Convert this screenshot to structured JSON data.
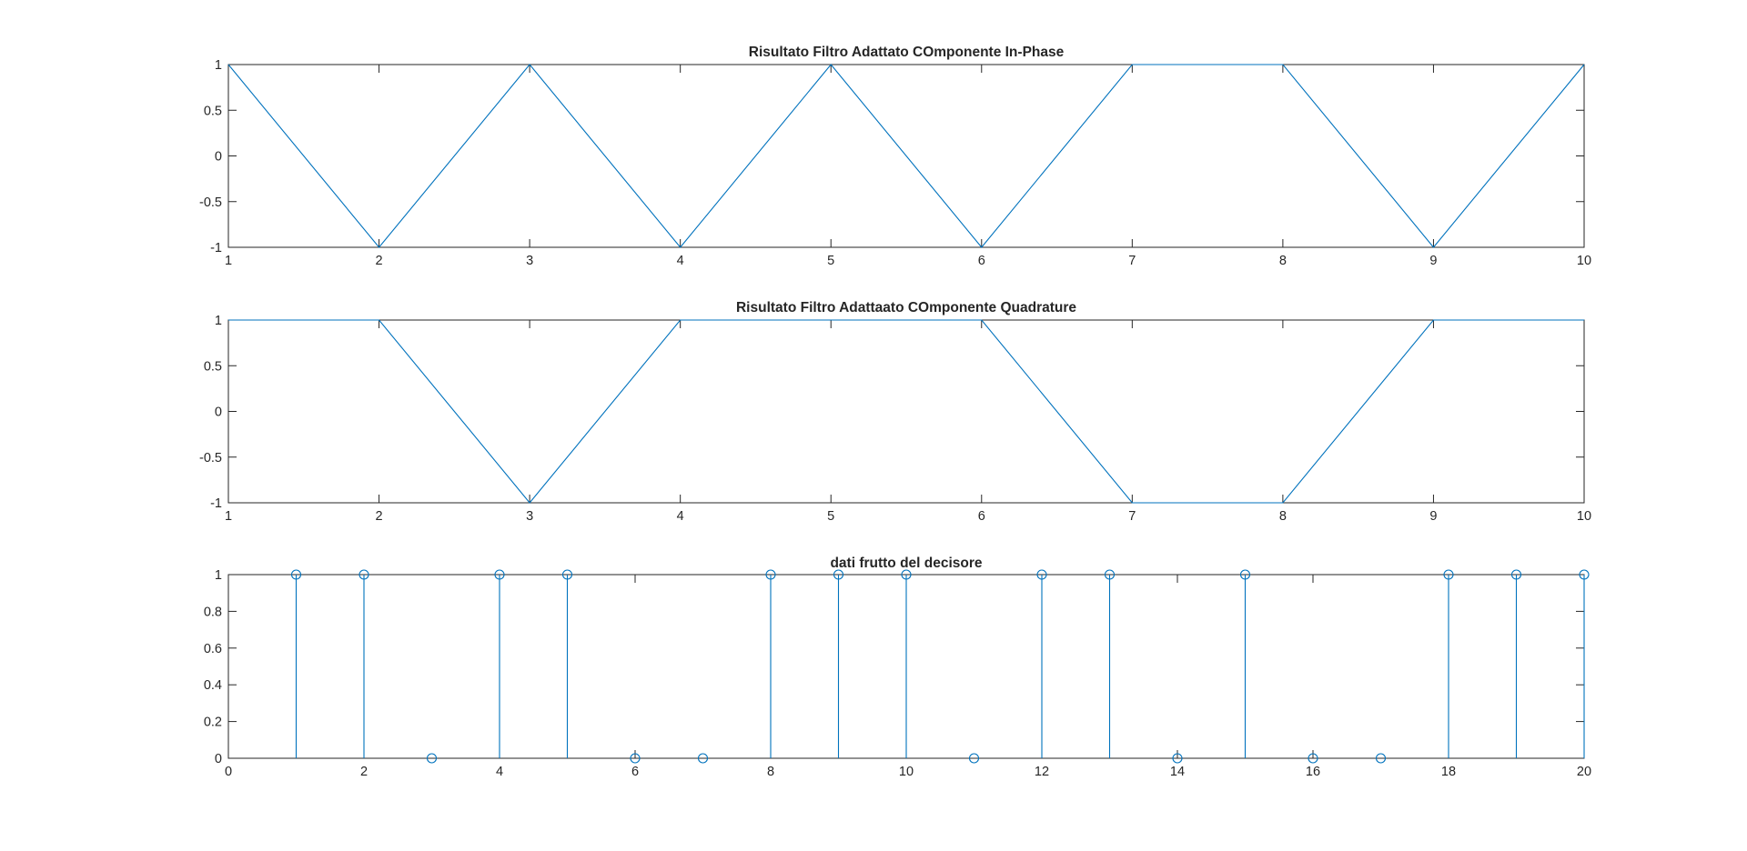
{
  "chart_data": [
    {
      "type": "line",
      "title": "Risultato Filtro Adattato COmponente In-Phase",
      "xlabel": "",
      "ylabel": "",
      "xlim": [
        1,
        10
      ],
      "ylim": [
        -1,
        1
      ],
      "x_ticks": [
        1,
        2,
        3,
        4,
        5,
        6,
        7,
        8,
        9,
        10
      ],
      "y_ticks": [
        1,
        0.5,
        0,
        -0.5,
        -1
      ],
      "y_tick_labels": [
        "1",
        "0.5",
        "0",
        "-0.5",
        "-1"
      ],
      "grid": false,
      "series": [
        {
          "color": "#0072BD",
          "x": [
            1,
            2,
            3,
            4,
            5,
            6,
            7,
            8,
            9,
            10
          ],
          "y": [
            1,
            -1,
            1,
            -1,
            1,
            -1,
            1,
            1,
            -1,
            1
          ]
        }
      ]
    },
    {
      "type": "line",
      "title": "Risultato Filtro Adattaato COmponente Quadrature",
      "xlabel": "",
      "ylabel": "",
      "xlim": [
        1,
        10
      ],
      "ylim": [
        -1,
        1
      ],
      "x_ticks": [
        1,
        2,
        3,
        4,
        5,
        6,
        7,
        8,
        9,
        10
      ],
      "y_ticks": [
        1,
        0.5,
        0,
        -0.5,
        -1
      ],
      "y_tick_labels": [
        "1",
        "0.5",
        "0",
        "-0.5",
        "-1"
      ],
      "grid": false,
      "series": [
        {
          "color": "#0072BD",
          "x": [
            1,
            2,
            3,
            4,
            5,
            6,
            7,
            8,
            9,
            10
          ],
          "y": [
            1,
            1,
            -1,
            1,
            1,
            1,
            -1,
            -1,
            1,
            1
          ]
        }
      ]
    },
    {
      "type": "stem",
      "title": "dati frutto del decisore",
      "xlabel": "",
      "ylabel": "",
      "xlim": [
        0,
        20
      ],
      "ylim": [
        0,
        1
      ],
      "x_ticks": [
        0,
        2,
        4,
        6,
        8,
        10,
        12,
        14,
        16,
        18,
        20
      ],
      "y_ticks": [
        1,
        0.8,
        0.6,
        0.4,
        0.2,
        0
      ],
      "y_tick_labels": [
        "1",
        "0.8",
        "0.6",
        "0.4",
        "0.2",
        "0"
      ],
      "grid": false,
      "series": [
        {
          "color": "#0072BD",
          "marker": "circle",
          "x": [
            1,
            2,
            3,
            4,
            5,
            6,
            7,
            8,
            9,
            10,
            11,
            12,
            13,
            14,
            15,
            16,
            17,
            18,
            19,
            20
          ],
          "y": [
            1,
            1,
            0,
            1,
            1,
            0,
            0,
            1,
            1,
            1,
            0,
            1,
            1,
            0,
            1,
            0,
            0,
            1,
            1,
            1
          ]
        }
      ]
    }
  ]
}
